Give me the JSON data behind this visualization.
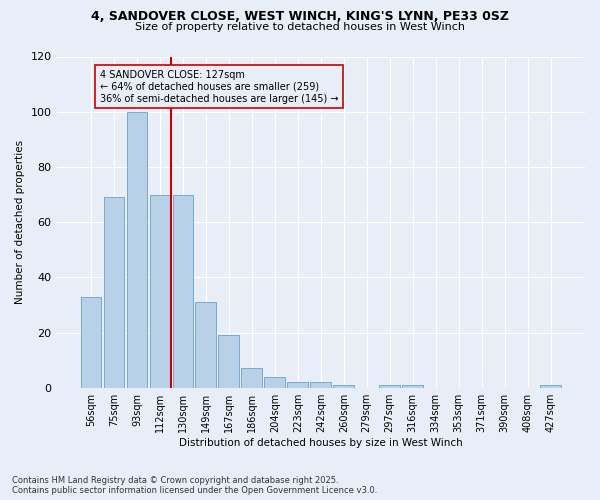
{
  "title_line1": "4, SANDOVER CLOSE, WEST WINCH, KING'S LYNN, PE33 0SZ",
  "title_line2": "Size of property relative to detached houses in West Winch",
  "xlabel": "Distribution of detached houses by size in West Winch",
  "ylabel": "Number of detached properties",
  "bar_color": "#b8d0e8",
  "bar_edge_color": "#6ca0c8",
  "categories": [
    "56sqm",
    "75sqm",
    "93sqm",
    "112sqm",
    "130sqm",
    "149sqm",
    "167sqm",
    "186sqm",
    "204sqm",
    "223sqm",
    "242sqm",
    "260sqm",
    "279sqm",
    "297sqm",
    "316sqm",
    "334sqm",
    "353sqm",
    "371sqm",
    "390sqm",
    "408sqm",
    "427sqm"
  ],
  "values": [
    33,
    69,
    100,
    70,
    70,
    31,
    19,
    7,
    4,
    2,
    2,
    1,
    0,
    1,
    1,
    0,
    0,
    0,
    0,
    0,
    1
  ],
  "vline_color": "#cc0000",
  "annotation_text": "4 SANDOVER CLOSE: 127sqm\n← 64% of detached houses are smaller (259)\n36% of semi-detached houses are larger (145) →",
  "ylim": [
    0,
    120
  ],
  "yticks": [
    0,
    20,
    40,
    60,
    80,
    100,
    120
  ],
  "background_color": "#e8eef8",
  "grid_color": "#ffffff",
  "footer_line1": "Contains HM Land Registry data © Crown copyright and database right 2025.",
  "footer_line2": "Contains public sector information licensed under the Open Government Licence v3.0."
}
